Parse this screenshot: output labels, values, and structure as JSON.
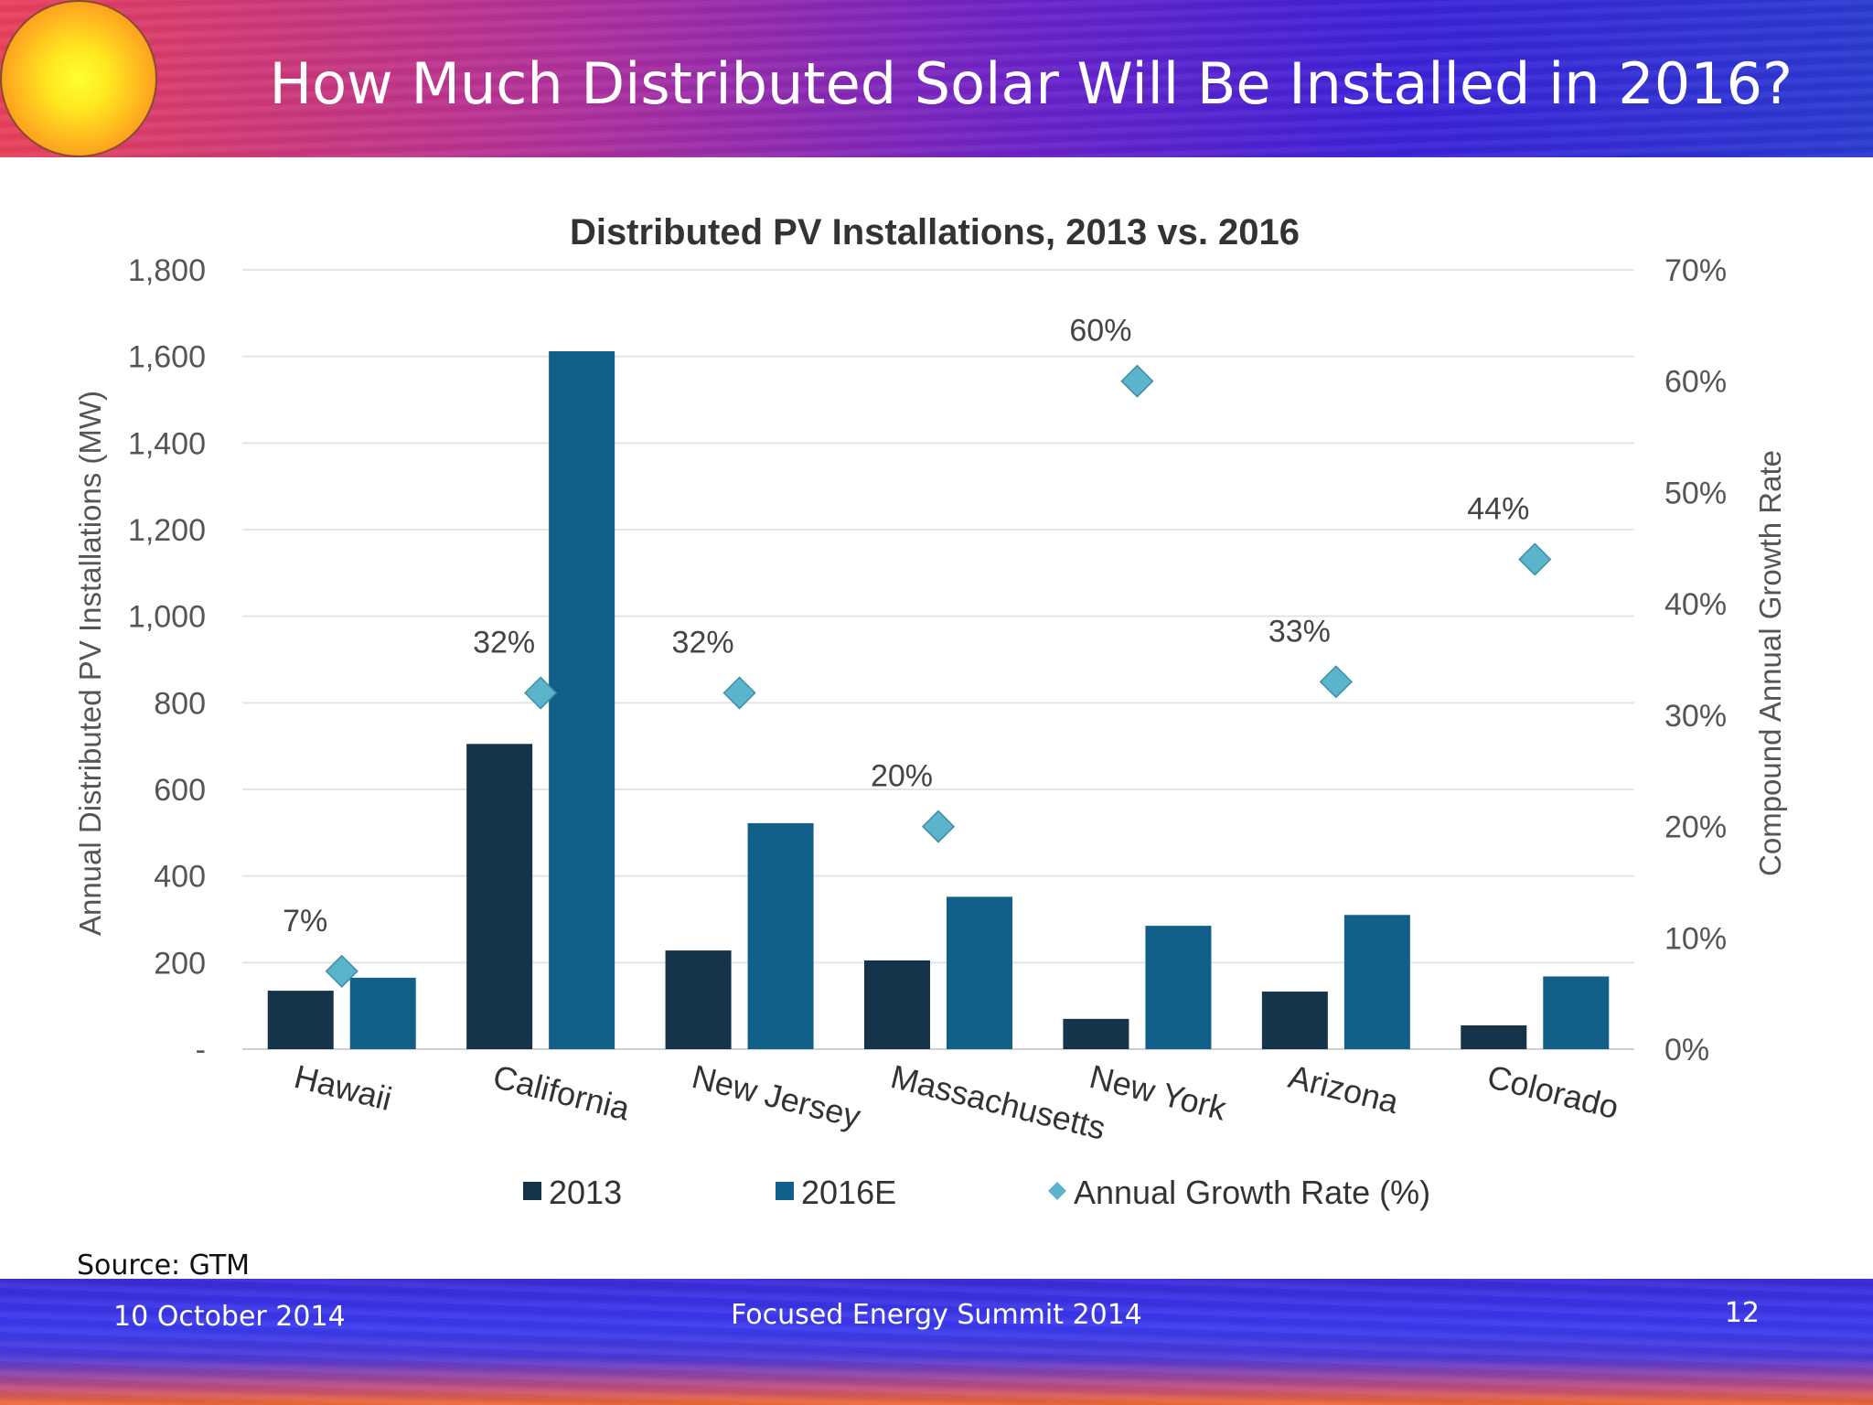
{
  "slide": {
    "title": "How Much Distributed Solar Will Be Installed in 2016?",
    "source": "Source: GTM",
    "footer_date": "10 October 2014",
    "footer_event": "Focused Energy Summit  2014",
    "page_number": "12"
  },
  "colors": {
    "series_2013": "#15344a",
    "series_2016": "#12608a",
    "growth_marker": "#5ab4cc",
    "gridline": "#e4e4e4",
    "axis_text": "#555555",
    "title_text": "#333333"
  },
  "chart_data": {
    "type": "bar",
    "title": "Distributed PV Installations, 2013 vs. 2016",
    "ylabel": "Annual Distributed PV Installations (MW)",
    "y2label": "Compound Annual Growth Rate",
    "ylim": [
      0,
      1800
    ],
    "y2lim": [
      0,
      70
    ],
    "yticks": [
      "-",
      "200",
      "400",
      "600",
      "800",
      "1,000",
      "1,200",
      "1,400",
      "1,600",
      "1,800"
    ],
    "y2ticks": [
      "0%",
      "10%",
      "20%",
      "30%",
      "40%",
      "50%",
      "60%",
      "70%"
    ],
    "grid": true,
    "legend_position": "bottom",
    "categories": [
      "Hawaii",
      "California",
      "New Jersey",
      "Massachusetts",
      "New York",
      "Arizona",
      "Colorado"
    ],
    "series": [
      {
        "name": "2013",
        "type": "bar",
        "values": [
          135,
          705,
          228,
          205,
          70,
          133,
          55
        ]
      },
      {
        "name": "2016E",
        "type": "bar",
        "values": [
          165,
          1612,
          522,
          352,
          285,
          310,
          168
        ]
      },
      {
        "name": "Annual Growth Rate (%)",
        "type": "scatter",
        "axis": "secondary",
        "values": [
          7,
          32,
          32,
          20,
          60,
          33,
          44
        ],
        "labels": [
          "7%",
          "32%",
          "32%",
          "20%",
          "60%",
          "33%",
          "44%"
        ]
      }
    ]
  }
}
